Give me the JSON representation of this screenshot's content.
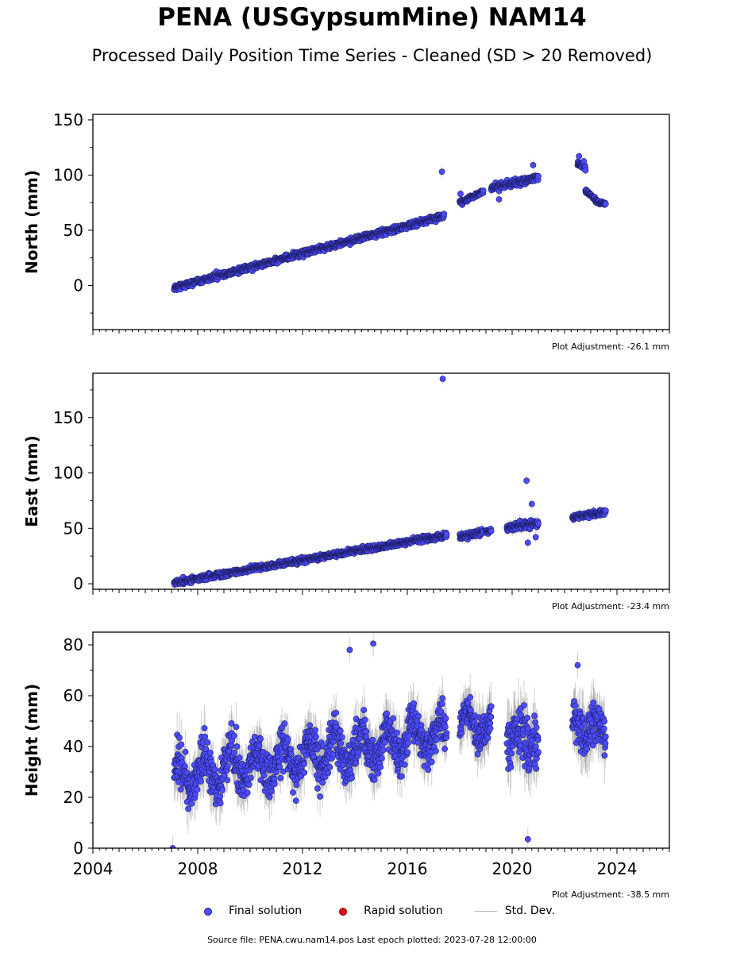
{
  "title": "PENA (USGypsumMine) NAM14",
  "subtitle": "Processed Daily Position Time Series - Cleaned (SD > 20 Removed)",
  "colors": {
    "final": "#4b4bff",
    "rapid": "#e01010",
    "stddev": "#bbbbbb"
  },
  "legend": {
    "final": "Final solution",
    "rapid": "Rapid solution",
    "stddev": "Std. Dev."
  },
  "footer": "Source file: PENA.cwu.nam14.pos  Last epoch plotted: 2023-07-28 12:00:00",
  "chart_data": [
    {
      "type": "scatter",
      "ylabel": "North (mm)",
      "adjustment": "Plot Adjustment: -26.1 mm",
      "xlim": [
        2004,
        2026
      ],
      "ylim": [
        -40,
        155
      ],
      "yticks": [
        0,
        50,
        100,
        150
      ],
      "xticks": [
        2004,
        2008,
        2012,
        2016,
        2020,
        2024
      ],
      "show_x_tick_labels": false,
      "segments": [
        {
          "x": [
            2007.1,
            2017.4
          ],
          "y": [
            -2,
            63
          ],
          "noise": 2.2,
          "err": 2.5
        },
        {
          "x": [
            2018.0,
            2018.9
          ],
          "y": [
            75,
            85
          ],
          "noise": 1.5,
          "err": 2.5
        },
        {
          "x": [
            2019.2,
            2021.0
          ],
          "y": [
            88,
            98
          ],
          "noise": 2.5,
          "err": 3.0
        },
        {
          "x": [
            2022.5,
            2022.8
          ],
          "y": [
            110,
            108
          ],
          "noise": 3.0,
          "err": 3.0
        },
        {
          "x": [
            2022.8,
            2023.3
          ],
          "y": [
            86,
            75
          ],
          "noise": 1.5,
          "err": 2.5
        },
        {
          "x": [
            2023.3,
            2023.57
          ],
          "y": [
            75,
            74
          ],
          "noise": 1.0,
          "err": 2.0
        }
      ],
      "outliers": [
        [
          2017.32,
          103
        ],
        [
          2018.03,
          83
        ],
        [
          2019.5,
          78
        ],
        [
          2020.8,
          109
        ],
        [
          2022.55,
          117
        ]
      ]
    },
    {
      "type": "scatter",
      "ylabel": "East (mm)",
      "adjustment": "Plot Adjustment: -23.4 mm",
      "xlim": [
        2004,
        2026
      ],
      "ylim": [
        -5,
        190
      ],
      "yticks": [
        0,
        50,
        100,
        150
      ],
      "xticks": [
        2004,
        2008,
        2012,
        2016,
        2020,
        2024
      ],
      "show_x_tick_labels": false,
      "segments": [
        {
          "x": [
            2007.1,
            2017.5
          ],
          "y": [
            1,
            44
          ],
          "noise": 2.0,
          "err": 3.0
        },
        {
          "x": [
            2018.0,
            2018.9
          ],
          "y": [
            42,
            47
          ],
          "noise": 2.0,
          "err": 3.5
        },
        {
          "x": [
            2019.0,
            2019.2
          ],
          "y": [
            47,
            48
          ],
          "noise": 1.5,
          "err": 3.0
        },
        {
          "x": [
            2019.8,
            2021.0
          ],
          "y": [
            50,
            55
          ],
          "noise": 3.0,
          "err": 4.0
        },
        {
          "x": [
            2022.3,
            2023.57
          ],
          "y": [
            60,
            65
          ],
          "noise": 2.0,
          "err": 3.0
        }
      ],
      "outliers": [
        [
          2017.35,
          185
        ],
        [
          2020.55,
          93
        ],
        [
          2020.75,
          72
        ],
        [
          2020.6,
          37
        ],
        [
          2020.9,
          42
        ]
      ]
    },
    {
      "type": "scatter",
      "ylabel": "Height (mm)",
      "adjustment": "Plot Adjustment: -38.5 mm",
      "xlim": [
        2004,
        2026
      ],
      "ylim": [
        0,
        85
      ],
      "yticks": [
        0,
        20,
        40,
        60,
        80
      ],
      "xticks": [
        2004,
        2008,
        2012,
        2016,
        2020,
        2024
      ],
      "show_x_tick_labels": true,
      "segments": [
        {
          "x": [
            2007.1,
            2017.5
          ],
          "y": [
            28,
            45
          ],
          "noise": 7.0,
          "err": 7.0,
          "seasonal": 6.0
        },
        {
          "x": [
            2018.0,
            2019.2
          ],
          "y": [
            50,
            47
          ],
          "noise": 6.0,
          "err": 7.0,
          "seasonal": 4.0
        },
        {
          "x": [
            2019.8,
            2021.0
          ],
          "y": [
            44,
            42
          ],
          "noise": 9.0,
          "err": 9.0,
          "seasonal": 3.0
        },
        {
          "x": [
            2022.3,
            2023.57
          ],
          "y": [
            50,
            46
          ],
          "noise": 8.0,
          "err": 8.0,
          "seasonal": 3.0
        }
      ],
      "outliers": [
        [
          2007.05,
          0
        ],
        [
          2013.8,
          78
        ],
        [
          2014.7,
          80.5
        ],
        [
          2020.6,
          3.5
        ],
        [
          2022.5,
          72
        ]
      ]
    }
  ]
}
